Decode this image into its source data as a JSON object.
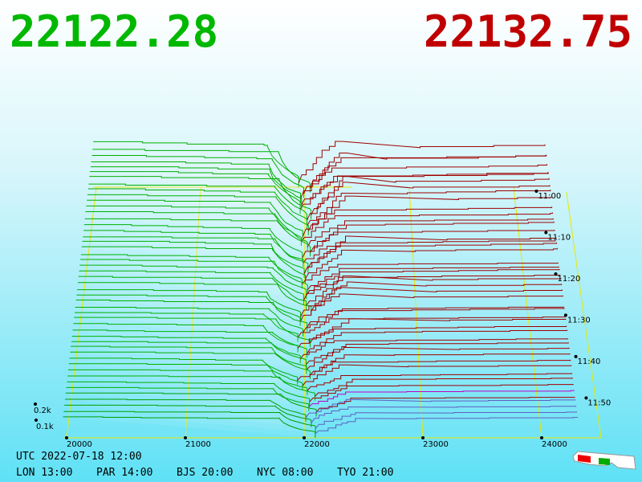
{
  "header": {
    "bid": "22122.28",
    "ask": "22132.75"
  },
  "price_axis": {
    "labels": [
      "20000",
      "21000",
      "22000",
      "23000",
      "24000"
    ]
  },
  "time_axis": {
    "labels": [
      "11:00",
      "11:10",
      "11:20",
      "11:30",
      "11:40",
      "11:50"
    ]
  },
  "depth_axis": {
    "labels": [
      "0.2k",
      "0.1k"
    ]
  },
  "footer": {
    "utc": "UTC 2022-07-18 12:00",
    "zones": [
      "LON 13:00",
      "PAR 14:00",
      "BJS 20:00",
      "NYC 08:00",
      "TYO 21:00"
    ]
  }
}
